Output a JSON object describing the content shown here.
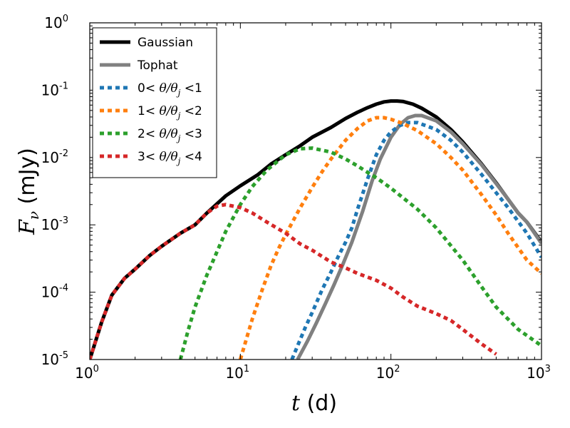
{
  "chart_data": {
    "type": "line",
    "xscale": "log",
    "yscale": "log",
    "xlim": [
      1,
      1000
    ],
    "ylim": [
      1e-05,
      1
    ],
    "xlabel": {
      "var": "t",
      "unit": " (d)"
    },
    "ylabel": {
      "var": "F",
      "sub": "ν",
      "unit": " (mJy)"
    },
    "legend_position": "top-left",
    "x_ticks": [
      {
        "base": "10",
        "exp": "0",
        "value": 1
      },
      {
        "base": "10",
        "exp": "1",
        "value": 10
      },
      {
        "base": "10",
        "exp": "2",
        "value": 100
      },
      {
        "base": "10",
        "exp": "3",
        "value": 1000
      }
    ],
    "y_ticks": [
      {
        "base": "10",
        "exp": "-5",
        "value": 1e-05
      },
      {
        "base": "10",
        "exp": "-4",
        "value": 0.0001
      },
      {
        "base": "10",
        "exp": "-3",
        "value": 0.001
      },
      {
        "base": "10",
        "exp": "-2",
        "value": 0.01
      },
      {
        "base": "10",
        "exp": "-1",
        "value": 0.1
      },
      {
        "base": "10",
        "exp": "0",
        "value": 1
      }
    ],
    "series": [
      {
        "name": "Gaussian",
        "legend": {
          "pre": "Gaussian",
          "math": "",
          "post": ""
        },
        "color": "#000000",
        "style": "solid",
        "x": [
          1,
          1.2,
          1.4,
          1.7,
          2,
          2.5,
          3,
          4,
          5,
          6,
          8,
          10,
          13,
          16,
          20,
          25,
          30,
          40,
          50,
          60,
          70,
          80,
          90,
          100,
          110,
          120,
          140,
          160,
          200,
          250,
          300,
          400,
          500,
          600,
          700,
          800,
          1000
        ],
        "y": [
          1e-05,
          3.6e-05,
          9e-05,
          0.00016,
          0.00022,
          0.00035,
          0.00048,
          0.00075,
          0.001,
          0.0015,
          0.0027,
          0.0038,
          0.0055,
          0.008,
          0.011,
          0.015,
          0.02,
          0.028,
          0.038,
          0.047,
          0.055,
          0.062,
          0.067,
          0.069,
          0.069,
          0.068,
          0.062,
          0.054,
          0.04,
          0.026,
          0.017,
          0.008,
          0.0042,
          0.0024,
          0.0015,
          0.0011,
          0.00055
        ]
      },
      {
        "name": "Tophat",
        "legend": {
          "pre": "Tophat",
          "math": "",
          "post": ""
        },
        "color": "#808080",
        "style": "solid",
        "x": [
          24,
          28,
          32,
          37,
          42,
          48,
          55,
          65,
          75,
          85,
          100,
          115,
          130,
          145,
          160,
          200,
          250,
          300,
          400,
          500,
          600,
          700,
          800,
          1000
        ],
        "y": [
          1e-05,
          1.9e-05,
          3.5e-05,
          7e-05,
          0.00013,
          0.00026,
          0.00055,
          0.0016,
          0.0045,
          0.0095,
          0.02,
          0.031,
          0.039,
          0.042,
          0.042,
          0.035,
          0.024,
          0.016,
          0.0078,
          0.0041,
          0.0024,
          0.0015,
          0.0011,
          0.00053
        ]
      },
      {
        "name": "0< θ/θj <1",
        "legend": {
          "pre": "0< ",
          "math": "θ/θ",
          "sub": "j",
          "post": " <1"
        },
        "color": "#1f77b4",
        "style": "dotted",
        "x": [
          22,
          24,
          27,
          30,
          35,
          40,
          45,
          50,
          55,
          60,
          70,
          80,
          90,
          100,
          115,
          130,
          150,
          200,
          250,
          300,
          400,
          500,
          600,
          800,
          1000
        ],
        "y": [
          1e-05,
          1.6e-05,
          3e-05,
          5e-05,
          0.00011,
          0.0002,
          0.00035,
          0.00055,
          0.0009,
          0.0017,
          0.0048,
          0.011,
          0.018,
          0.024,
          0.03,
          0.033,
          0.033,
          0.026,
          0.018,
          0.012,
          0.0056,
          0.003,
          0.0018,
          0.00075,
          0.00033
        ]
      },
      {
        "name": "1< θ/θj <2",
        "legend": {
          "pre": "1< ",
          "math": "θ/θ",
          "sub": "j",
          "post": " <2"
        },
        "color": "#ff7f0e",
        "style": "dotted",
        "x": [
          10,
          12,
          14,
          16,
          18,
          20,
          25,
          30,
          35,
          40,
          50,
          60,
          70,
          80,
          90,
          100,
          120,
          150,
          200,
          250,
          300,
          400,
          500,
          600,
          800,
          1000
        ],
        "y": [
          1e-05,
          4e-05,
          0.00011,
          0.00025,
          0.00045,
          0.00072,
          0.0018,
          0.0036,
          0.0062,
          0.0095,
          0.018,
          0.027,
          0.035,
          0.039,
          0.039,
          0.037,
          0.032,
          0.025,
          0.016,
          0.01,
          0.0065,
          0.0028,
          0.0014,
          0.00075,
          0.0003,
          0.00019
        ]
      },
      {
        "name": "2< θ/θj <3",
        "legend": {
          "pre": "2< ",
          "math": "θ/θ",
          "sub": "j",
          "post": " <3"
        },
        "color": "#2ca02c",
        "style": "dotted",
        "x": [
          4,
          4.5,
          5,
          6,
          7,
          8,
          10,
          12,
          15,
          20,
          25,
          30,
          40,
          50,
          60,
          70,
          80,
          100,
          150,
          200,
          300,
          400,
          500,
          700,
          1000
        ],
        "y": [
          1e-05,
          2.7e-05,
          6e-05,
          0.00018,
          0.0004,
          0.0008,
          0.002,
          0.0037,
          0.0065,
          0.011,
          0.0135,
          0.0138,
          0.012,
          0.0095,
          0.0075,
          0.006,
          0.005,
          0.0035,
          0.0017,
          0.0009,
          0.0003,
          0.00012,
          6e-05,
          2.8e-05,
          1.6e-05
        ]
      },
      {
        "name": "3< θ/θj <4",
        "legend": {
          "pre": "3< ",
          "math": "θ/θ",
          "sub": "j",
          "post": " <4"
        },
        "color": "#d62728",
        "style": "dotted",
        "x": [
          1,
          1.2,
          1.4,
          1.7,
          2,
          2.5,
          3,
          4,
          5,
          6,
          7,
          8,
          10,
          12,
          15,
          20,
          25,
          30,
          40,
          50,
          60,
          80,
          100,
          120,
          150,
          200,
          250,
          300,
          400,
          500
        ],
        "y": [
          1e-05,
          3.6e-05,
          9e-05,
          0.00016,
          0.00022,
          0.00035,
          0.00048,
          0.00075,
          0.001,
          0.0015,
          0.0019,
          0.002,
          0.0018,
          0.0015,
          0.0011,
          0.00075,
          0.00052,
          0.00042,
          0.00028,
          0.00023,
          0.00019,
          0.00015,
          0.000115,
          8.5e-05,
          6.2e-05,
          4.8e-05,
          3.8e-05,
          2.8e-05,
          1.7e-05,
          1.2e-05
        ]
      }
    ]
  }
}
